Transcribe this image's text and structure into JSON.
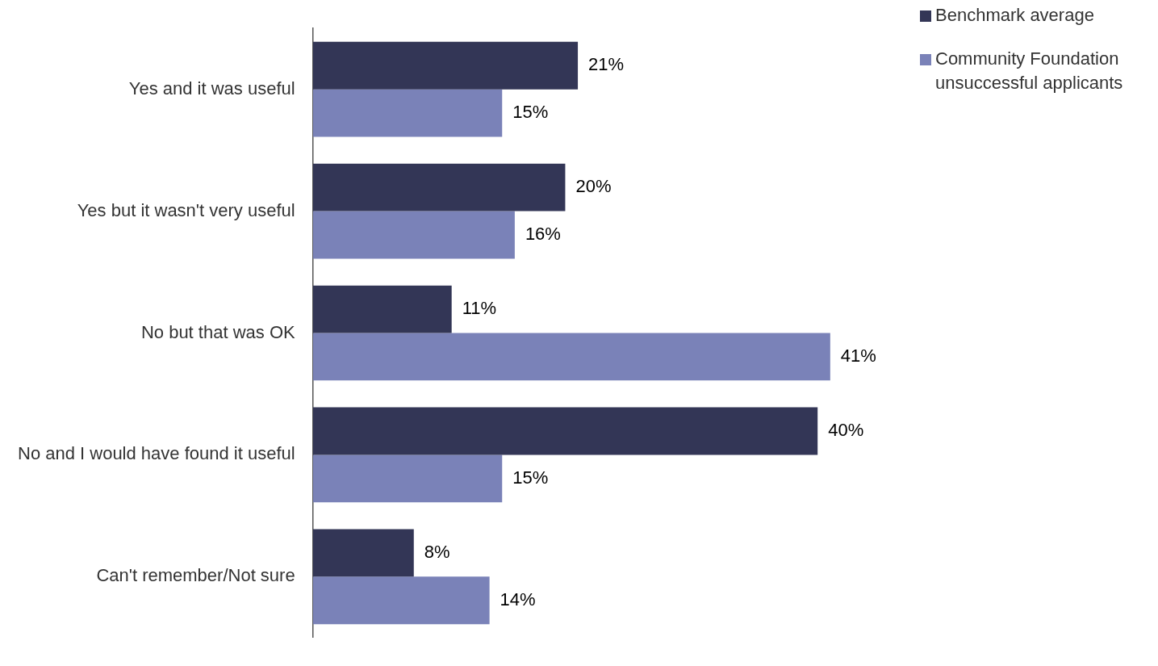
{
  "chart_data": {
    "type": "bar",
    "orientation": "horizontal",
    "categories": [
      "Yes and it was useful",
      "Yes but it wasn't very useful",
      "No but that was OK",
      "No and I would have found it useful",
      "Can't remember/Not sure"
    ],
    "series": [
      {
        "name": "Benchmark average",
        "color": "#333656",
        "values": [
          21,
          20,
          11,
          40,
          8
        ],
        "value_labels": [
          "21%",
          "20%",
          "11%",
          "40%",
          "8%"
        ]
      },
      {
        "name": "Community Foundation unsuccessful applicants",
        "color": "#7a82b8",
        "values": [
          15,
          16,
          41,
          15,
          14
        ],
        "value_labels": [
          "15%",
          "16%",
          "41%",
          "15%",
          "14%"
        ]
      }
    ],
    "legend": "top right"
  }
}
